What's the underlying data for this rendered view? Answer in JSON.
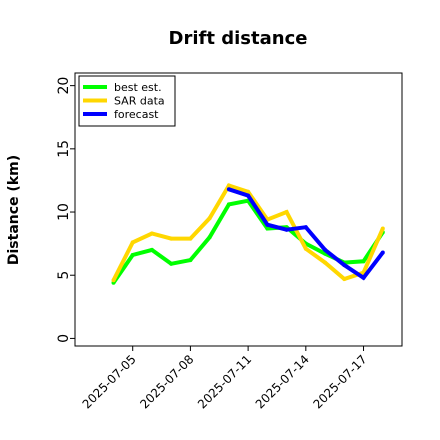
{
  "chart_data": {
    "type": "line",
    "title": "Drift distance",
    "xlabel": "",
    "ylabel": "Distance (km)",
    "ylim": [
      -0.6,
      21
    ],
    "xlim": [
      "2025-07-02",
      "2025-07-19"
    ],
    "grid": false,
    "legend_position": "top-left",
    "x_tick_labels": [
      "2025-07-05",
      "2025-07-08",
      "2025-07-11",
      "2025-07-14",
      "2025-07-17"
    ],
    "y_tick_labels": [
      "0",
      "5",
      "10",
      "15",
      "20"
    ],
    "x_ticks": [
      "2025-07-05",
      "2025-07-08",
      "2025-07-11",
      "2025-07-14",
      "2025-07-17"
    ],
    "y_ticks": [
      0,
      5,
      10,
      15,
      20
    ],
    "series": [
      {
        "name": "best est.",
        "color": "#00ff00",
        "x": [
          "2025-07-04",
          "2025-07-05",
          "2025-07-06",
          "2025-07-07",
          "2025-07-08",
          "2025-07-09",
          "2025-07-10",
          "2025-07-11",
          "2025-07-12",
          "2025-07-13",
          "2025-07-14",
          "2025-07-15",
          "2025-07-16",
          "2025-07-17",
          "2025-07-18"
        ],
        "values": [
          4.4,
          6.6,
          7.0,
          5.9,
          6.2,
          8.0,
          10.6,
          10.9,
          8.7,
          8.8,
          7.5,
          6.7,
          6.0,
          6.1,
          8.4
        ]
      },
      {
        "name": "SAR data",
        "color": "#ffd700",
        "x": [
          "2025-07-04",
          "2025-07-05",
          "2025-07-06",
          "2025-07-07",
          "2025-07-08",
          "2025-07-09",
          "2025-07-10",
          "2025-07-11",
          "2025-07-12",
          "2025-07-13",
          "2025-07-14",
          "2025-07-15",
          "2025-07-16",
          "2025-07-17",
          "2025-07-18"
        ],
        "values": [
          4.6,
          7.6,
          8.3,
          7.9,
          7.9,
          9.5,
          12.1,
          11.6,
          9.4,
          10.0,
          7.1,
          6.0,
          4.7,
          5.2,
          8.7
        ]
      },
      {
        "name": "forecast",
        "color": "#0000ff",
        "x": [
          "2025-07-10",
          "2025-07-11",
          "2025-07-12",
          "2025-07-13",
          "2025-07-14",
          "2025-07-15",
          "2025-07-16",
          "2025-07-17",
          "2025-07-18"
        ],
        "values": [
          11.8,
          11.3,
          9.0,
          8.6,
          8.8,
          7.0,
          5.8,
          4.8,
          6.8
        ]
      }
    ]
  }
}
